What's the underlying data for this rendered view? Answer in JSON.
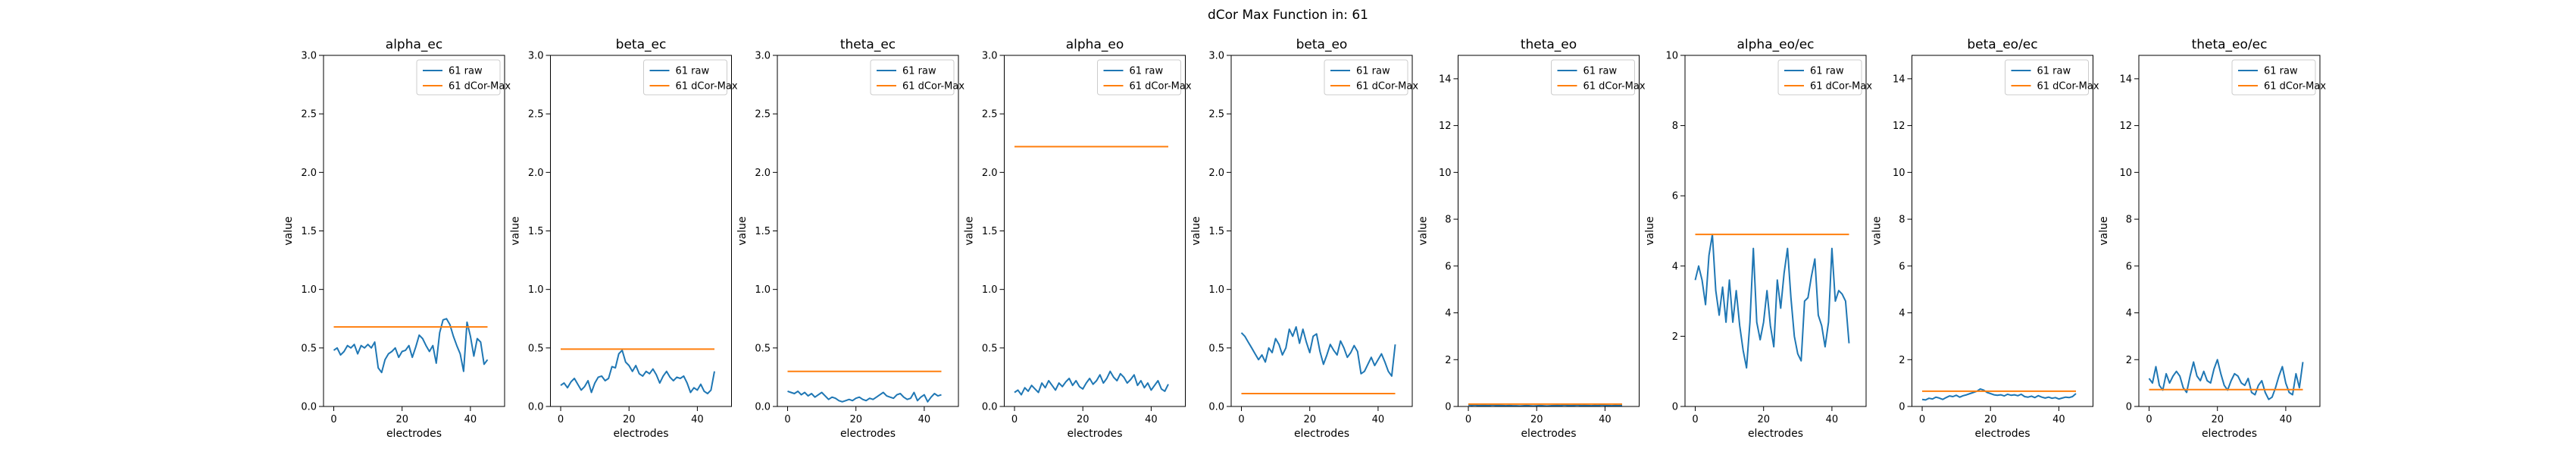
{
  "figure": {
    "suptitle": "dCor Max Function in: 61"
  },
  "chart_data": [
    {
      "type": "line",
      "title": "alpha_ec",
      "xlabel": "electrodes",
      "ylabel": "value",
      "xlim": [
        -3,
        50
      ],
      "ylim": [
        0,
        3.0
      ],
      "xticks": [
        0,
        20,
        40
      ],
      "yticks": [
        0,
        0.5,
        1.0,
        1.5,
        2.0,
        2.5,
        3.0
      ],
      "ytick_labels": [
        "0.0",
        "0.5",
        "1.0",
        "1.5",
        "2.0",
        "2.5",
        "3.0"
      ],
      "legend_position": "upper-right",
      "series": [
        {
          "name": "61 raw",
          "color": "#1f77b4",
          "y": [
            0.48,
            0.5,
            0.44,
            0.47,
            0.52,
            0.5,
            0.53,
            0.45,
            0.52,
            0.5,
            0.53,
            0.5,
            0.55,
            0.33,
            0.29,
            0.4,
            0.45,
            0.47,
            0.5,
            0.42,
            0.47,
            0.48,
            0.52,
            0.42,
            0.51,
            0.61,
            0.58,
            0.52,
            0.47,
            0.52,
            0.37,
            0.63,
            0.74,
            0.75,
            0.7,
            0.6,
            0.52,
            0.45,
            0.3,
            0.72,
            0.6,
            0.43,
            0.58,
            0.55,
            0.36,
            0.4
          ]
        },
        {
          "name": "61 dCor-Max",
          "color": "#ff7f0e",
          "x": [
            0,
            45
          ],
          "y": [
            0.68,
            0.68
          ]
        }
      ]
    },
    {
      "type": "line",
      "title": "beta_ec",
      "xlabel": "electrodes",
      "ylabel": "value",
      "xlim": [
        -3,
        50
      ],
      "ylim": [
        0,
        3.0
      ],
      "xticks": [
        0,
        20,
        40
      ],
      "yticks": [
        0,
        0.5,
        1.0,
        1.5,
        2.0,
        2.5,
        3.0
      ],
      "ytick_labels": [
        "0.0",
        "0.5",
        "1.0",
        "1.5",
        "2.0",
        "2.5",
        "3.0"
      ],
      "legend_position": "upper-right",
      "series": [
        {
          "name": "61 raw",
          "color": "#1f77b4",
          "y": [
            0.18,
            0.2,
            0.16,
            0.21,
            0.24,
            0.19,
            0.14,
            0.17,
            0.22,
            0.12,
            0.2,
            0.25,
            0.26,
            0.22,
            0.24,
            0.34,
            0.33,
            0.45,
            0.48,
            0.38,
            0.35,
            0.3,
            0.35,
            0.28,
            0.26,
            0.3,
            0.28,
            0.32,
            0.27,
            0.2,
            0.26,
            0.3,
            0.25,
            0.22,
            0.25,
            0.24,
            0.26,
            0.2,
            0.12,
            0.16,
            0.14,
            0.19,
            0.13,
            0.11,
            0.14,
            0.3
          ]
        },
        {
          "name": "61 dCor-Max",
          "color": "#ff7f0e",
          "x": [
            0,
            45
          ],
          "y": [
            0.49,
            0.49
          ]
        }
      ]
    },
    {
      "type": "line",
      "title": "theta_ec",
      "xlabel": "electrodes",
      "ylabel": "value",
      "xlim": [
        -3,
        50
      ],
      "ylim": [
        0,
        3.0
      ],
      "xticks": [
        0,
        20,
        40
      ],
      "yticks": [
        0,
        0.5,
        1.0,
        1.5,
        2.0,
        2.5,
        3.0
      ],
      "ytick_labels": [
        "0.0",
        "0.5",
        "1.0",
        "1.5",
        "2.0",
        "2.5",
        "3.0"
      ],
      "legend_position": "upper-right",
      "series": [
        {
          "name": "61 raw",
          "color": "#1f77b4",
          "y": [
            0.13,
            0.12,
            0.11,
            0.13,
            0.1,
            0.12,
            0.09,
            0.11,
            0.08,
            0.1,
            0.12,
            0.09,
            0.06,
            0.08,
            0.07,
            0.05,
            0.04,
            0.05,
            0.06,
            0.05,
            0.07,
            0.08,
            0.06,
            0.05,
            0.07,
            0.06,
            0.08,
            0.1,
            0.12,
            0.09,
            0.08,
            0.07,
            0.1,
            0.11,
            0.08,
            0.06,
            0.07,
            0.12,
            0.05,
            0.08,
            0.1,
            0.04,
            0.08,
            0.11,
            0.09,
            0.1
          ]
        },
        {
          "name": "61 dCor-Max",
          "color": "#ff7f0e",
          "x": [
            0,
            45
          ],
          "y": [
            0.3,
            0.3
          ]
        }
      ]
    },
    {
      "type": "line",
      "title": "alpha_eo",
      "xlabel": "electrodes",
      "ylabel": "value",
      "xlim": [
        -3,
        50
      ],
      "ylim": [
        0,
        3.0
      ],
      "xticks": [
        0,
        20,
        40
      ],
      "yticks": [
        0,
        0.5,
        1.0,
        1.5,
        2.0,
        2.5,
        3.0
      ],
      "ytick_labels": [
        "0.0",
        "0.5",
        "1.0",
        "1.5",
        "2.0",
        "2.5",
        "3.0"
      ],
      "legend_position": "upper-right",
      "series": [
        {
          "name": "61 raw",
          "color": "#1f77b4",
          "y": [
            0.12,
            0.14,
            0.1,
            0.16,
            0.13,
            0.18,
            0.15,
            0.12,
            0.2,
            0.16,
            0.22,
            0.18,
            0.14,
            0.2,
            0.17,
            0.21,
            0.24,
            0.18,
            0.22,
            0.17,
            0.15,
            0.2,
            0.24,
            0.19,
            0.22,
            0.27,
            0.2,
            0.24,
            0.3,
            0.25,
            0.22,
            0.28,
            0.25,
            0.2,
            0.23,
            0.27,
            0.18,
            0.22,
            0.16,
            0.2,
            0.14,
            0.18,
            0.22,
            0.15,
            0.13,
            0.19
          ]
        },
        {
          "name": "61 dCor-Max",
          "color": "#ff7f0e",
          "x": [
            0,
            45
          ],
          "y": [
            2.22,
            2.22
          ]
        }
      ]
    },
    {
      "type": "line",
      "title": "beta_eo",
      "xlabel": "electrodes",
      "ylabel": "value",
      "xlim": [
        -3,
        50
      ],
      "ylim": [
        0,
        3.0
      ],
      "xticks": [
        0,
        20,
        40
      ],
      "yticks": [
        0,
        0.5,
        1.0,
        1.5,
        2.0,
        2.5,
        3.0
      ],
      "ytick_labels": [
        "0.0",
        "0.5",
        "1.0",
        "1.5",
        "2.0",
        "2.5",
        "3.0"
      ],
      "legend_position": "upper-right",
      "series": [
        {
          "name": "61 raw",
          "color": "#1f77b4",
          "y": [
            0.63,
            0.6,
            0.55,
            0.5,
            0.45,
            0.4,
            0.44,
            0.38,
            0.5,
            0.46,
            0.58,
            0.53,
            0.44,
            0.5,
            0.66,
            0.6,
            0.68,
            0.54,
            0.66,
            0.55,
            0.46,
            0.6,
            0.62,
            0.47,
            0.36,
            0.44,
            0.53,
            0.48,
            0.44,
            0.56,
            0.5,
            0.42,
            0.46,
            0.52,
            0.47,
            0.28,
            0.3,
            0.36,
            0.42,
            0.35,
            0.4,
            0.45,
            0.38,
            0.3,
            0.26,
            0.53
          ]
        },
        {
          "name": "61 dCor-Max",
          "color": "#ff7f0e",
          "x": [
            0,
            45
          ],
          "y": [
            0.11,
            0.11
          ]
        }
      ]
    },
    {
      "type": "line",
      "title": "theta_eo",
      "xlabel": "electrodes",
      "ylabel": "value",
      "xlim": [
        -3,
        50
      ],
      "ylim": [
        0,
        15
      ],
      "xticks": [
        0,
        20,
        40
      ],
      "yticks": [
        0,
        2,
        4,
        6,
        8,
        10,
        12,
        14
      ],
      "ytick_labels": [
        "0",
        "2",
        "4",
        "6",
        "8",
        "10",
        "12",
        "14"
      ],
      "legend_position": "upper-right",
      "series": [
        {
          "name": "61 raw",
          "color": "#1f77b4",
          "y": [
            0.06,
            0.05,
            0.06,
            0.04,
            0.05,
            0.05,
            0.04,
            0.06,
            0.05,
            0.05,
            0.04,
            0.03,
            0.04,
            0.03,
            0.03,
            0.02,
            0.03,
            0.04,
            0.03,
            0.02,
            0.03,
            0.04,
            0.03,
            0.02,
            0.03,
            0.04,
            0.05,
            0.04,
            0.06,
            0.05,
            0.04,
            0.05,
            0.06,
            0.04,
            0.05,
            0.04,
            0.03,
            0.05,
            0.04,
            0.06,
            0.05,
            0.04,
            0.03,
            0.05,
            0.04,
            0.05
          ]
        },
        {
          "name": "61 dCor-Max",
          "color": "#ff7f0e",
          "x": [
            0,
            45
          ],
          "y": [
            0.1,
            0.1
          ]
        }
      ]
    },
    {
      "type": "line",
      "title": "alpha_eo/ec",
      "xlabel": "electrodes",
      "ylabel": "value",
      "xlim": [
        -3,
        50
      ],
      "ylim": [
        0,
        10
      ],
      "xticks": [
        0,
        20,
        40
      ],
      "yticks": [
        0,
        2,
        4,
        6,
        8,
        10
      ],
      "ytick_labels": [
        "0",
        "2",
        "4",
        "6",
        "8",
        "10"
      ],
      "legend_position": "upper-right",
      "series": [
        {
          "name": "61 raw",
          "color": "#1f77b4",
          "y": [
            3.6,
            4.0,
            3.6,
            2.9,
            4.3,
            4.9,
            3.3,
            2.6,
            3.4,
            2.4,
            3.6,
            2.4,
            3.3,
            2.3,
            1.6,
            1.1,
            2.4,
            4.5,
            2.4,
            1.9,
            2.4,
            3.3,
            2.3,
            1.7,
            3.6,
            2.8,
            3.8,
            4.5,
            3.1,
            2.0,
            1.5,
            1.3,
            3.0,
            3.1,
            3.7,
            4.2,
            2.6,
            2.3,
            1.7,
            2.4,
            4.5,
            3.0,
            3.3,
            3.2,
            3.0,
            1.8
          ]
        },
        {
          "name": "61 dCor-Max",
          "color": "#ff7f0e",
          "x": [
            0,
            45
          ],
          "y": [
            4.9,
            4.9
          ]
        }
      ]
    },
    {
      "type": "line",
      "title": "beta_eo/ec",
      "xlabel": "electrodes",
      "ylabel": "value",
      "xlim": [
        -3,
        50
      ],
      "ylim": [
        0,
        15
      ],
      "xticks": [
        0,
        20,
        40
      ],
      "yticks": [
        0,
        2,
        4,
        6,
        8,
        10,
        12,
        14
      ],
      "ytick_labels": [
        "0",
        "2",
        "4",
        "6",
        "8",
        "10",
        "12",
        "14"
      ],
      "legend_position": "upper-right",
      "series": [
        {
          "name": "61 raw",
          "color": "#1f77b4",
          "y": [
            0.3,
            0.28,
            0.35,
            0.32,
            0.4,
            0.36,
            0.3,
            0.38,
            0.45,
            0.42,
            0.48,
            0.4,
            0.46,
            0.5,
            0.55,
            0.6,
            0.65,
            0.75,
            0.7,
            0.6,
            0.55,
            0.5,
            0.48,
            0.5,
            0.45,
            0.52,
            0.48,
            0.5,
            0.46,
            0.52,
            0.42,
            0.4,
            0.44,
            0.38,
            0.46,
            0.4,
            0.36,
            0.4,
            0.35,
            0.38,
            0.32,
            0.36,
            0.4,
            0.38,
            0.42,
            0.55
          ]
        },
        {
          "name": "61 dCor-Max",
          "color": "#ff7f0e",
          "x": [
            0,
            45
          ],
          "y": [
            0.65,
            0.65
          ]
        }
      ]
    },
    {
      "type": "line",
      "title": "theta_eo/ec",
      "xlabel": "electrodes",
      "ylabel": "value",
      "xlim": [
        -3,
        50
      ],
      "ylim": [
        0,
        15
      ],
      "xticks": [
        0,
        20,
        40
      ],
      "yticks": [
        0,
        2,
        4,
        6,
        8,
        10,
        12,
        14
      ],
      "ytick_labels": [
        "0",
        "2",
        "4",
        "6",
        "8",
        "10",
        "12",
        "14"
      ],
      "legend_position": "upper-right",
      "series": [
        {
          "name": "61 raw",
          "color": "#1f77b4",
          "y": [
            1.2,
            1.0,
            1.7,
            0.9,
            0.7,
            1.4,
            1.0,
            1.3,
            1.5,
            1.3,
            0.8,
            0.6,
            1.3,
            1.9,
            1.3,
            1.1,
            1.5,
            1.1,
            1.0,
            1.6,
            2.0,
            1.4,
            0.9,
            0.7,
            1.1,
            1.4,
            1.3,
            1.0,
            0.9,
            1.2,
            0.6,
            0.5,
            0.9,
            1.1,
            0.6,
            0.3,
            0.4,
            0.8,
            1.3,
            1.7,
            1.0,
            0.6,
            0.5,
            1.4,
            0.8,
            1.9
          ]
        },
        {
          "name": "61 dCor-Max",
          "color": "#ff7f0e",
          "x": [
            0,
            45
          ],
          "y": [
            0.72,
            0.72
          ]
        }
      ]
    }
  ]
}
